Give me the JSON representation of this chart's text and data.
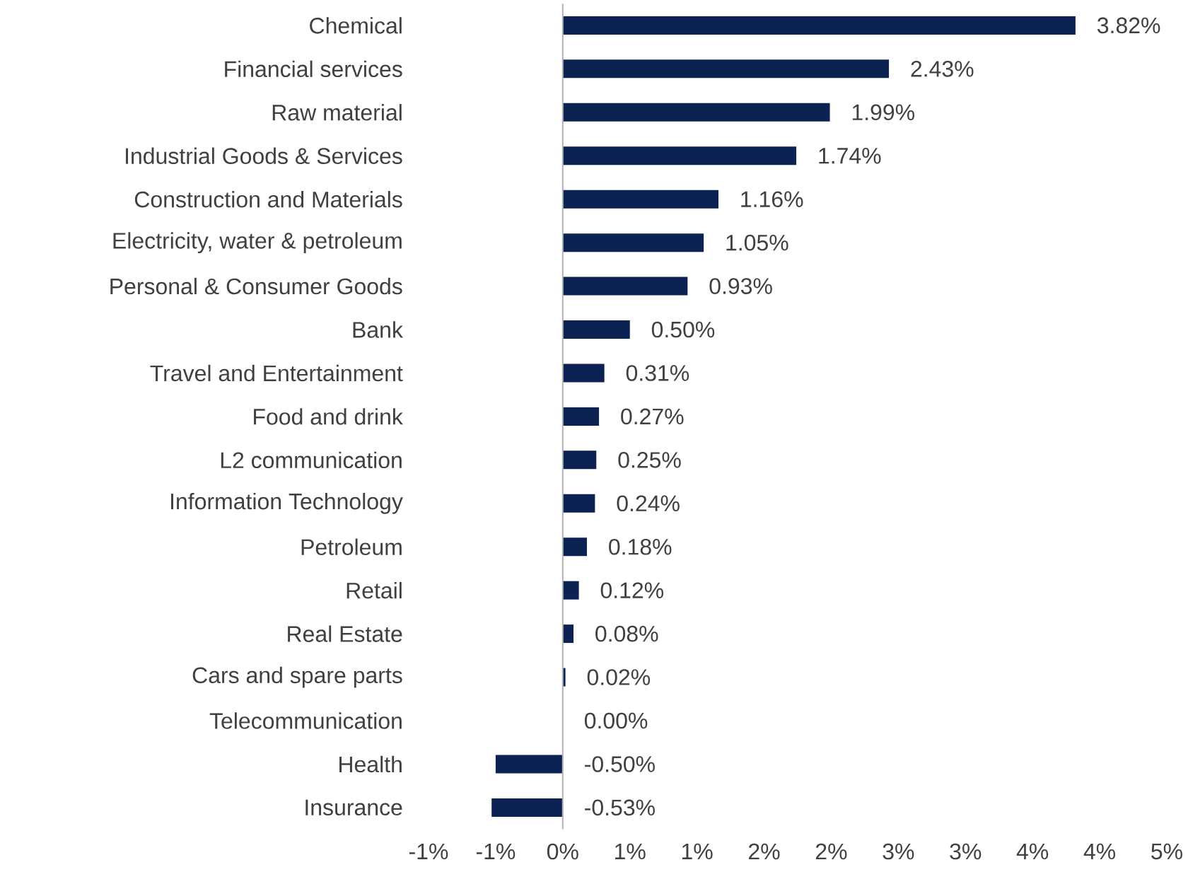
{
  "chart_data": {
    "type": "bar",
    "orientation": "horizontal",
    "color": "#0c2252",
    "categories": [
      "Chemical",
      "Financial services",
      "Raw material",
      "Industrial Goods & Services",
      "Construction and Materials",
      "Electricity, water & petroleum",
      "Personal & Consumer Goods",
      "Bank",
      "Travel and Entertainment",
      "Food and drink",
      "L2 communication",
      "Information Technology",
      "Petroleum",
      "Retail",
      "Real Estate",
      "Cars and spare parts",
      "Telecommunication",
      "Health",
      "Insurance"
    ],
    "values": [
      3.82,
      2.43,
      1.99,
      1.74,
      1.16,
      1.05,
      0.93,
      0.5,
      0.31,
      0.27,
      0.25,
      0.24,
      0.18,
      0.12,
      0.08,
      0.02,
      0.0,
      -0.5,
      -0.53
    ],
    "value_labels": [
      "3.82%",
      "2.43%",
      "1.99%",
      "1.74%",
      "1.16%",
      "1.05%",
      "0.93%",
      "0.50%",
      "0.31%",
      "0.27%",
      "0.25%",
      "0.24%",
      "0.18%",
      "0.12%",
      "0.08%",
      "0.02%",
      "0.00%",
      "-0.50%",
      "-0.53%"
    ],
    "xlim": [
      -1,
      4.5
    ],
    "xticks": [
      {
        "value": -1,
        "label": "-1%"
      },
      {
        "value": -0.5,
        "label": "-1%"
      },
      {
        "value": 0,
        "label": "0%"
      },
      {
        "value": 0.5,
        "label": "1%"
      },
      {
        "value": 1,
        "label": "1%"
      },
      {
        "value": 1.5,
        "label": "2%"
      },
      {
        "value": 2,
        "label": "2%"
      },
      {
        "value": 2.5,
        "label": "3%"
      },
      {
        "value": 3,
        "label": "3%"
      },
      {
        "value": 3.5,
        "label": "4%"
      },
      {
        "value": 4,
        "label": "4%"
      },
      {
        "value": 4.5,
        "label": "5%"
      }
    ]
  }
}
